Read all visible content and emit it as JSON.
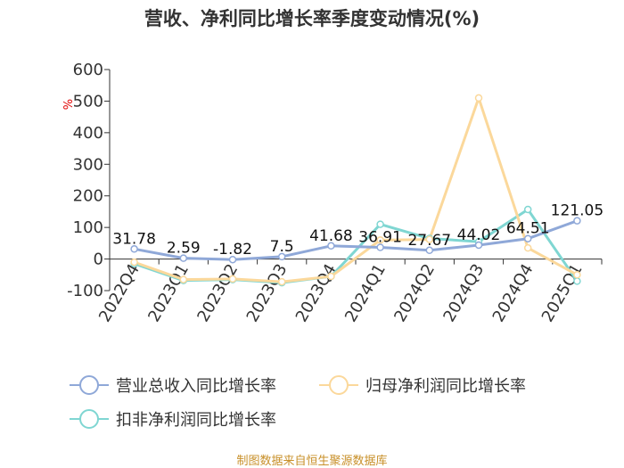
{
  "title": "营收、净利同比增长率季度变动情况(%)",
  "unit": "%",
  "source": "制图数据来自恒生聚源数据库",
  "chart_data": {
    "type": "line",
    "title": "营收、净利同比增长率季度变动情况(%)",
    "categories": [
      "2022Q4",
      "2023Q1",
      "2023Q2",
      "2023Q3",
      "2023Q4",
      "2024Q1",
      "2024Q2",
      "2024Q3",
      "2024Q4",
      "2025Q1"
    ],
    "ylim": [
      -100,
      600
    ],
    "yticks": [
      -100,
      0,
      100,
      200,
      300,
      400,
      500,
      600
    ],
    "grid": false,
    "legend_position": "bottom",
    "series": [
      {
        "name": "营业总收入同比增长率",
        "color": "#8fa8d8",
        "values": [
          31.78,
          2.59,
          -1.82,
          7.5,
          41.68,
          36.91,
          27.67,
          44.02,
          64.51,
          121.05
        ],
        "labels": [
          "31.78",
          "2.59",
          "-1.82",
          "7.5",
          "41.68",
          "36.91",
          "27.67",
          "44.02",
          "64.51",
          "121.05"
        ]
      },
      {
        "name": "归母净利润同比增长率",
        "color": "#fbd89b",
        "values": [
          -10,
          -65,
          -63,
          -72,
          -55,
          60,
          62,
          510,
          35,
          -50
        ]
      },
      {
        "name": "扣非净利润同比增长率",
        "color": "#7fd6d2",
        "values": [
          -15,
          -68,
          -65,
          -75,
          -55,
          110,
          65,
          55,
          157,
          -70
        ]
      }
    ]
  }
}
